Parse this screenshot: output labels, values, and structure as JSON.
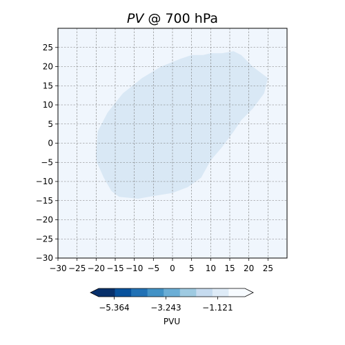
{
  "chart_data": {
    "type": "contourf",
    "title": {
      "variable": "PV",
      "rest": " @ 700 hPa"
    },
    "xlim": [
      -30,
      30
    ],
    "ylim": [
      -30,
      30
    ],
    "xticks": [
      -30,
      -25,
      -20,
      -15,
      -10,
      -5,
      0,
      5,
      10,
      15,
      20,
      25
    ],
    "yticks": [
      -30,
      -25,
      -20,
      -15,
      -10,
      -5,
      0,
      5,
      10,
      15,
      20,
      25
    ],
    "xlabel": "",
    "ylabel": "",
    "grid": true,
    "background_color": "#f0f6fd",
    "contour_region": {
      "fill": "#d9e8f5",
      "boundary": [
        [
          -20.0,
          -3.0
        ],
        [
          -19.6,
          3.0
        ],
        [
          -17.0,
          8.0
        ],
        [
          -13.0,
          13.0
        ],
        [
          -8.0,
          17.0
        ],
        [
          -3.0,
          20.0
        ],
        [
          2.0,
          22.0
        ],
        [
          5.0,
          23.0
        ],
        [
          8.0,
          23.0
        ],
        [
          10.0,
          23.5
        ],
        [
          13.0,
          23.5
        ],
        [
          16.0,
          24.0
        ],
        [
          18.0,
          23.0
        ],
        [
          21.0,
          20.0
        ],
        [
          25.0,
          17.0
        ],
        [
          24.0,
          13.0
        ],
        [
          21.0,
          9.0
        ],
        [
          18.0,
          6.0
        ],
        [
          16.0,
          3.0
        ],
        [
          13.0,
          -1.0
        ],
        [
          10.0,
          -4.5
        ],
        [
          7.5,
          -9.0
        ],
        [
          4.0,
          -11.5
        ],
        [
          0.0,
          -13.0
        ],
        [
          -5.0,
          -13.8
        ],
        [
          -9.0,
          -14.5
        ],
        [
          -14.0,
          -14.0
        ],
        [
          -16.0,
          -12.5
        ],
        [
          -18.0,
          -9.0
        ],
        [
          -19.8,
          -5.0
        ]
      ]
    },
    "colorbar": {
      "label": "PVU",
      "tick_values": [
        -5.364,
        -3.243,
        -1.121
      ],
      "tick_labels": [
        "−5.364",
        "−3.243",
        "−1.121"
      ],
      "range": [
        -6.0,
        0.0
      ],
      "extend": "both",
      "colors": [
        "#08306b",
        "#08519c",
        "#2171b5",
        "#4292c6",
        "#6baed6",
        "#9ecae1",
        "#c6dbef",
        "#deebf7",
        "#f7fbff"
      ],
      "under_color": "#08306b",
      "over_color": "#f7fbff"
    }
  }
}
